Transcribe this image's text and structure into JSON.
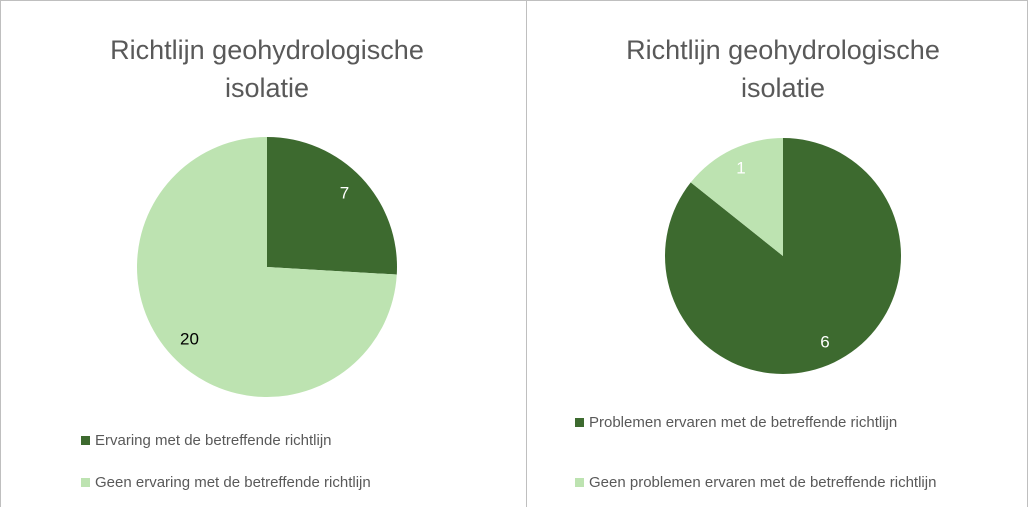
{
  "chart_data": [
    {
      "type": "pie",
      "title": "Richtlijn geohydrologische isolatie",
      "categories": [
        "Ervaring met de betreffende richtlijn",
        "Geen ervaring met de betreffende richtlijn"
      ],
      "values": [
        7,
        20
      ],
      "colors": [
        "#3d6a2f",
        "#bde3b1"
      ],
      "label_colors": [
        "#ffffff",
        "#000000"
      ]
    },
    {
      "type": "pie",
      "title": "Richtlijn geohydrologische isolatie",
      "categories": [
        "Problemen ervaren met de betreffende richtlijn",
        "Geen problemen ervaren met de betreffende richtlijn"
      ],
      "values": [
        6,
        1
      ],
      "colors": [
        "#3d6a2f",
        "#bde3b1"
      ],
      "label_colors": [
        "#ffffff",
        "#ffffff"
      ]
    }
  ]
}
